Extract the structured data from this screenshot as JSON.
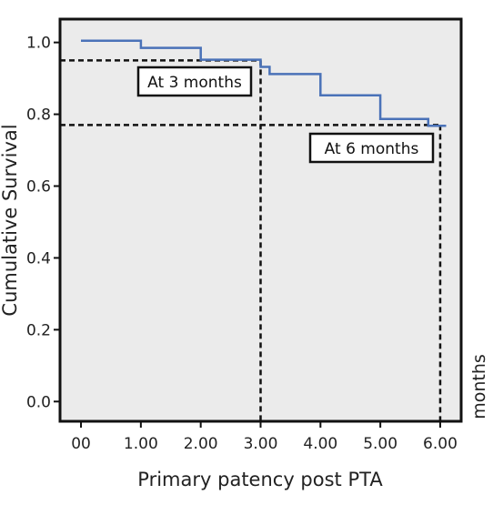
{
  "chart_data": {
    "type": "line",
    "title": "",
    "xlabel": "Primary patency post PTA",
    "ylabel": "Cumulative Survival",
    "side_label": "months",
    "xlim": [
      -0.35,
      6.35
    ],
    "ylim": [
      -0.055,
      1.065
    ],
    "x_ticks": [
      0,
      1,
      2,
      3,
      4,
      5,
      6
    ],
    "x_tick_labels": [
      "00",
      "1.00",
      "2.00",
      "3.00",
      "4.00",
      "5.00",
      "6.00"
    ],
    "y_ticks": [
      0,
      0.2,
      0.4,
      0.6,
      0.8,
      1.0
    ],
    "y_tick_labels": [
      "0.0",
      "0.2",
      "0.4",
      "0.6",
      "0.8",
      "1.0"
    ],
    "grid": false,
    "line_color": "#4a72b8",
    "background_color": "#ebebeb",
    "series": [
      {
        "name": "",
        "x": [
          0,
          1.0,
          1.0,
          2.0,
          2.0,
          3.0,
          3.0,
          3.15,
          3.15,
          4.0,
          4.0,
          5.0,
          5.0,
          5.8,
          5.8,
          6.1
        ],
        "y": [
          1.005,
          1.005,
          0.985,
          0.985,
          0.952,
          0.952,
          0.932,
          0.932,
          0.912,
          0.912,
          0.853,
          0.853,
          0.787,
          0.787,
          0.768,
          0.768
        ],
        "step": true
      }
    ],
    "reference_lines": [
      {
        "label": "At 3 months",
        "x": 3.0,
        "y": 0.95
      },
      {
        "label": "At 6 months",
        "x": 6.0,
        "y": 0.77
      }
    ]
  }
}
